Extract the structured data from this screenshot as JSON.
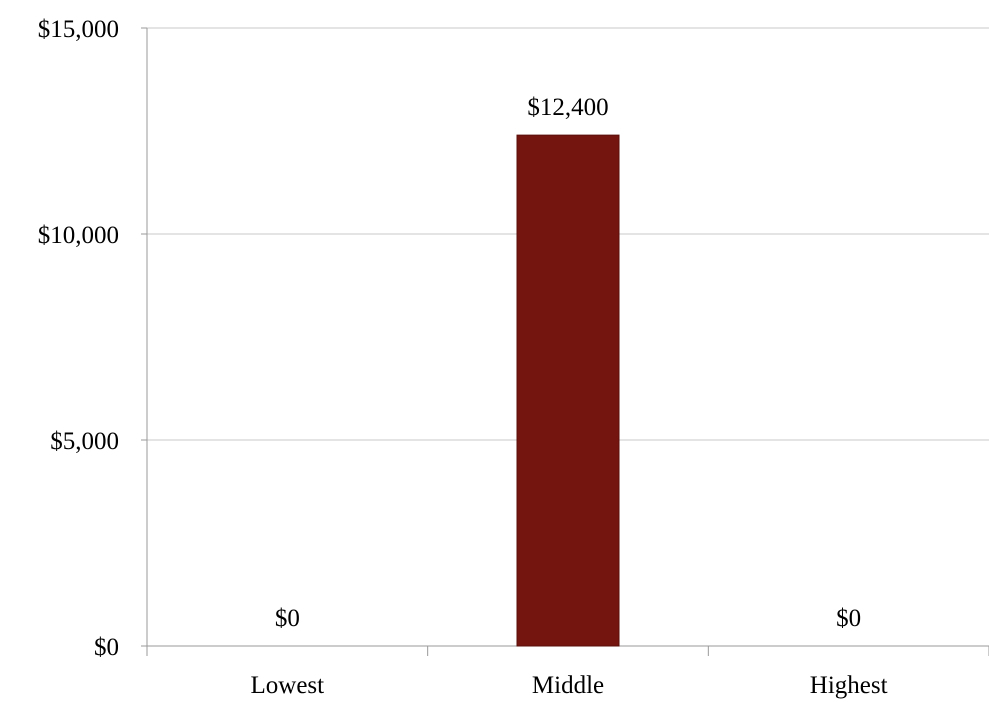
{
  "chart_data": {
    "type": "bar",
    "categories": [
      "Lowest",
      "Middle",
      "Highest"
    ],
    "values": [
      0,
      12400,
      0
    ],
    "data_labels": [
      "$0",
      "$12,400",
      "$0"
    ],
    "title": "",
    "xlabel": "",
    "ylabel": "",
    "ylim": [
      0,
      15000
    ],
    "yticks": [
      0,
      5000,
      10000,
      15000
    ],
    "ytick_labels": [
      "$0",
      "$5,000",
      "$10,000",
      "$15,000"
    ],
    "grid": true,
    "legend": "none",
    "colors": {
      "bar": "#74150f",
      "grid": "#c8c8c8",
      "axis": "#9a9a9a"
    }
  }
}
